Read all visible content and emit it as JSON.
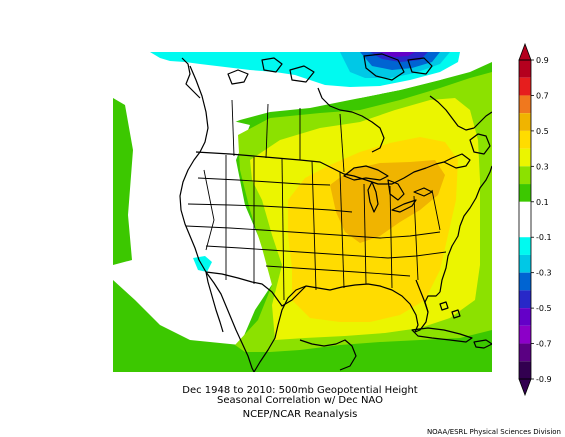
{
  "caption": {
    "line1": "Dec 1948 to 2010: 500mb Geopotential Height",
    "line2": "Seasonal Correlation w/ Dec NAO",
    "line3": "NCEP/NCAR Reanalysis"
  },
  "credit": "NOAA/ESRL Physical Sciences Division",
  "legend": {
    "ticks": [
      "0.9",
      "0.7",
      "0.5",
      "0.3",
      "0.1",
      "-0.1",
      "-0.3",
      "-0.5",
      "-0.7",
      "-0.9"
    ],
    "bands": [
      {
        "range": [
          0.8,
          0.9
        ],
        "color": "#b4001e"
      },
      {
        "range": [
          0.7,
          0.8
        ],
        "color": "#e61e1e"
      },
      {
        "range": [
          0.6,
          0.7
        ],
        "color": "#f0781e"
      },
      {
        "range": [
          0.5,
          0.6
        ],
        "color": "#f0b400"
      },
      {
        "range": [
          0.4,
          0.5
        ],
        "color": "#ffdc00"
      },
      {
        "range": [
          0.3,
          0.4
        ],
        "color": "#ebf500"
      },
      {
        "range": [
          0.2,
          0.3
        ],
        "color": "#8ce100"
      },
      {
        "range": [
          0.1,
          0.2
        ],
        "color": "#3cc800"
      },
      {
        "range": [
          -0.1,
          0.1
        ],
        "color": "#ffffff"
      },
      {
        "range": [
          -0.2,
          -0.1
        ],
        "color": "#00faf0"
      },
      {
        "range": [
          -0.3,
          -0.2
        ],
        "color": "#00c8e6"
      },
      {
        "range": [
          -0.4,
          -0.3
        ],
        "color": "#0064d2"
      },
      {
        "range": [
          -0.5,
          -0.4
        ],
        "color": "#2828c8"
      },
      {
        "range": [
          -0.6,
          -0.5
        ],
        "color": "#6400c8"
      },
      {
        "range": [
          -0.7,
          -0.6
        ],
        "color": "#8c00c8"
      },
      {
        "range": [
          -0.8,
          -0.7
        ],
        "color": "#5a0082"
      },
      {
        "range": [
          -0.9,
          -0.8
        ],
        "color": "#320050"
      }
    ]
  }
}
